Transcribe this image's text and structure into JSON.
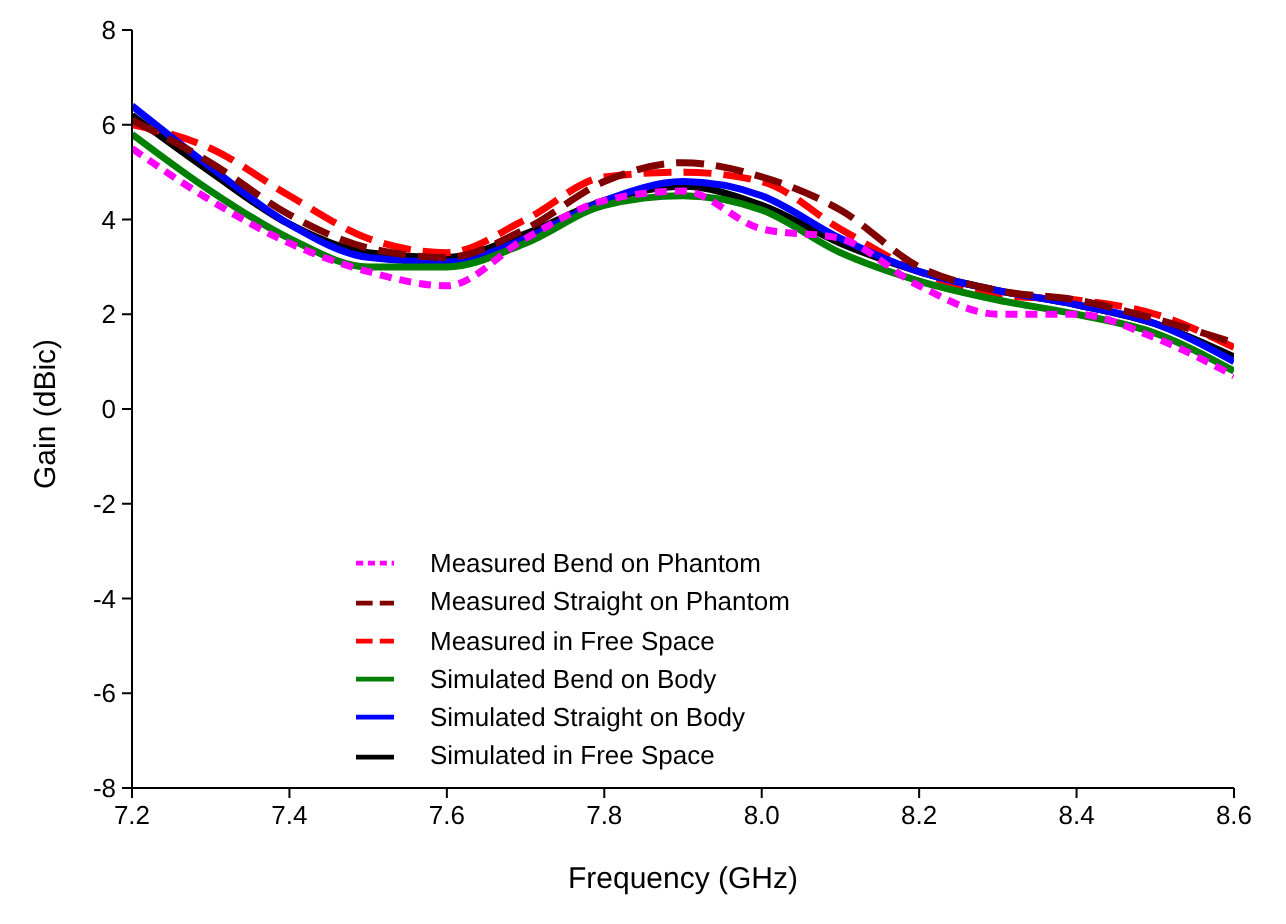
{
  "chart_data": {
    "type": "line",
    "xlabel": "Frequency (GHz)",
    "ylabel": "Gain (dBic)",
    "x": [
      7.2,
      7.3,
      7.4,
      7.5,
      7.6,
      7.7,
      7.8,
      7.9,
      8.0,
      8.1,
      8.2,
      8.3,
      8.4,
      8.5,
      8.6
    ],
    "xlim": [
      7.2,
      8.6
    ],
    "xticks": [
      7.2,
      7.4,
      7.6,
      7.8,
      {
        "value": 8,
        "label": "8.0"
      },
      8.2,
      8.4,
      8.6
    ],
    "ylim": [
      -8,
      8
    ],
    "yticks": [
      -8,
      -6,
      -4,
      -2,
      0,
      2,
      4,
      6,
      8
    ],
    "grid": false,
    "legend": "bottom",
    "marker": "none",
    "series": [
      {
        "name": "Simulated in Free Space",
        "color": "#000000",
        "line_style": "solid",
        "values": [
          6.2,
          5.0,
          3.9,
          3.3,
          3.2,
          3.7,
          4.4,
          4.7,
          4.3,
          3.5,
          2.9,
          2.5,
          2.2,
          1.8,
          1.1
        ]
      },
      {
        "name": "Measured in Free Space",
        "color": "#ff0000",
        "line_style": "dashed",
        "values": [
          6.0,
          5.5,
          4.5,
          3.6,
          3.3,
          4.0,
          4.9,
          5.0,
          4.8,
          3.8,
          2.9,
          2.4,
          2.3,
          2.0,
          1.3
        ]
      },
      {
        "name": "Simulated Straight on Body",
        "color": "#0000ff",
        "line_style": "solid",
        "values": [
          6.4,
          5.1,
          3.9,
          3.2,
          3.1,
          3.6,
          4.4,
          4.8,
          4.5,
          3.6,
          2.9,
          2.5,
          2.2,
          1.8,
          1.0
        ]
      },
      {
        "name": "Measured Straight on Phantom",
        "color": "#800000",
        "line_style": "dashed",
        "values": [
          6.1,
          5.2,
          4.1,
          3.4,
          3.2,
          3.8,
          4.8,
          5.2,
          4.9,
          4.2,
          3.0,
          2.5,
          2.3,
          1.9,
          1.4
        ]
      },
      {
        "name": "Simulated Bend on Body",
        "color": "#008000",
        "line_style": "solid",
        "values": [
          5.8,
          4.6,
          3.6,
          3.0,
          3.0,
          3.5,
          4.3,
          4.5,
          4.2,
          3.3,
          2.7,
          2.3,
          2.0,
          1.6,
          0.8
        ]
      },
      {
        "name": "Measured Bend on Phantom",
        "color": "#ff00ff",
        "line_style": "dotted",
        "values": [
          5.5,
          4.4,
          3.5,
          2.9,
          2.6,
          3.6,
          4.4,
          4.6,
          3.8,
          3.6,
          2.6,
          2.0,
          2.0,
          1.5,
          0.7
        ]
      }
    ]
  }
}
